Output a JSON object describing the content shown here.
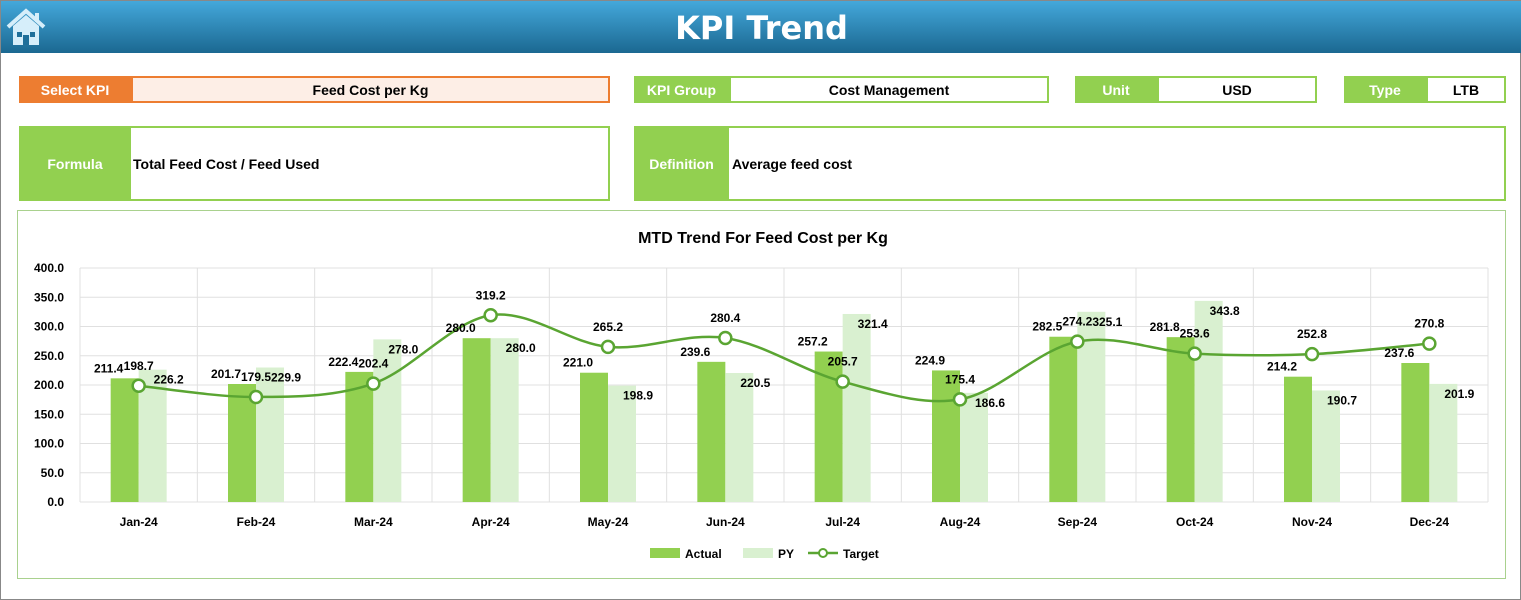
{
  "header": {
    "title": "KPI Trend",
    "home_icon": "home-icon"
  },
  "selectors": {
    "select_kpi_label": "Select KPI",
    "select_kpi_value": "Feed Cost per Kg",
    "kpi_group_label": "KPI Group",
    "kpi_group_value": "Cost Management",
    "unit_label": "Unit",
    "unit_value": "USD",
    "type_label": "Type",
    "type_value": "LTB",
    "formula_label": "Formula",
    "formula_value": "Total Feed Cost / Feed Used",
    "definition_label": "Definition",
    "definition_value": "Average feed cost"
  },
  "colors": {
    "accent": "#92d050",
    "orange": "#ed7d31",
    "actual": "#92d050",
    "py": "#d9f0d0",
    "target": "#5aa532"
  },
  "chart_data": {
    "type": "bar",
    "title": "MTD Trend For Feed Cost per Kg",
    "categories": [
      "Jan-24",
      "Feb-24",
      "Mar-24",
      "Apr-24",
      "May-24",
      "Jun-24",
      "Jul-24",
      "Aug-24",
      "Sep-24",
      "Oct-24",
      "Nov-24",
      "Dec-24"
    ],
    "ylim": [
      0,
      400
    ],
    "yticks": [
      "0.0",
      "50.0",
      "100.0",
      "150.0",
      "200.0",
      "250.0",
      "300.0",
      "350.0",
      "400.0"
    ],
    "grid": true,
    "legend": "bottom",
    "series": [
      {
        "name": "Actual",
        "type": "bar",
        "values": [
          211.4,
          201.7,
          222.4,
          280.0,
          221.0,
          239.6,
          257.2,
          224.9,
          282.5,
          281.8,
          214.2,
          237.6
        ]
      },
      {
        "name": "PY",
        "type": "bar",
        "values": [
          226.2,
          229.9,
          278.0,
          280.0,
          198.9,
          220.5,
          321.4,
          186.6,
          325.1,
          343.8,
          190.7,
          201.9
        ]
      },
      {
        "name": "Target",
        "type": "line",
        "values": [
          198.7,
          179.5,
          202.4,
          319.2,
          265.2,
          280.4,
          205.7,
          175.4,
          274.2,
          253.6,
          252.8,
          270.8
        ]
      }
    ]
  }
}
